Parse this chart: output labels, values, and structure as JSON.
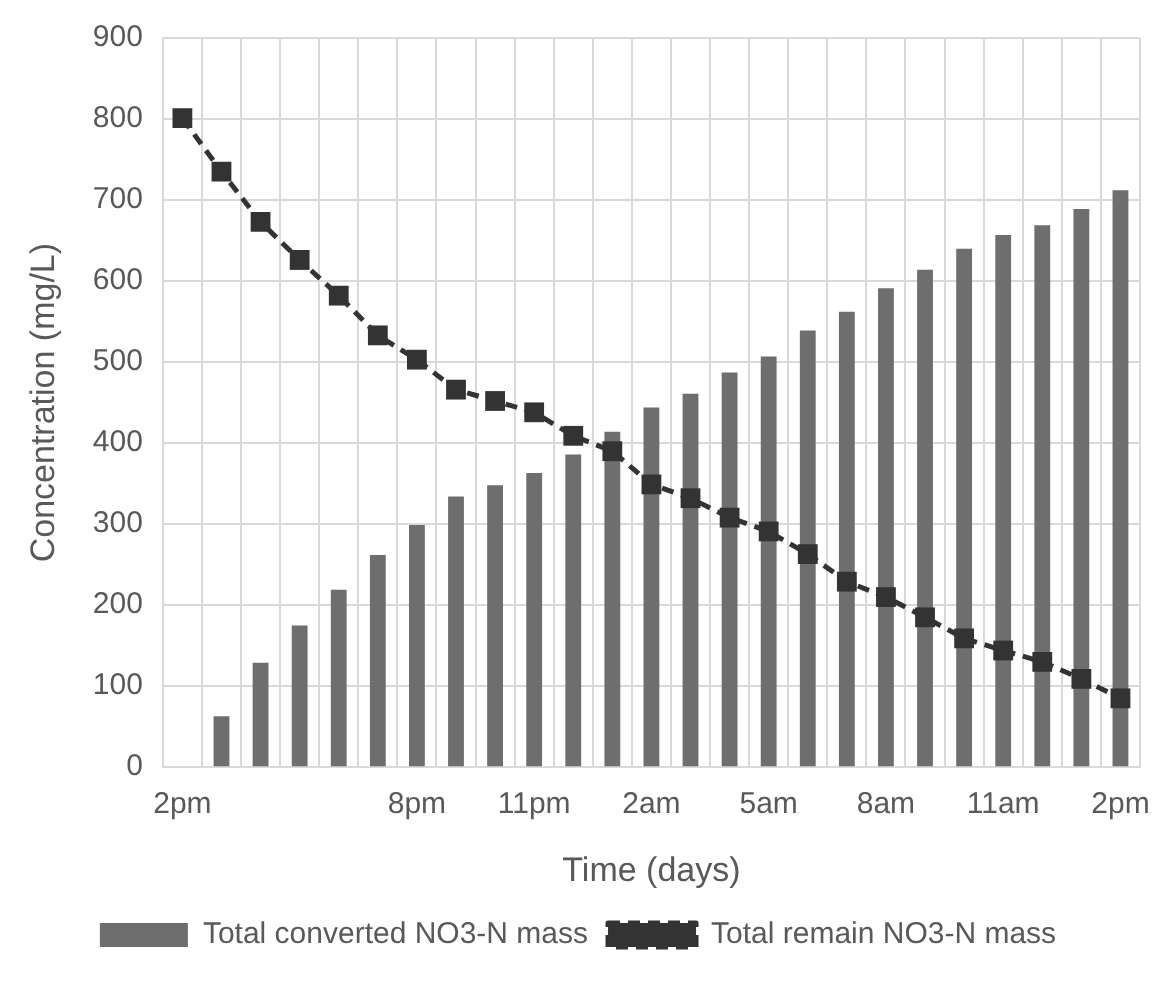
{
  "chart_data": {
    "type": "bar",
    "xlabel": "Time (days)",
    "ylabel": "Concentration (mg/L)",
    "categories": [
      "2pm",
      null,
      null,
      null,
      null,
      null,
      "8pm",
      null,
      null,
      "11pm",
      null,
      null,
      "2am",
      null,
      null,
      "5am",
      null,
      null,
      "8am",
      null,
      null,
      "11am",
      null,
      null,
      "2pm"
    ],
    "series": [
      {
        "name": "Total converted NO3-N mass",
        "color": "#6e6e6e",
        "values": [
          0,
          63,
          129,
          175,
          219,
          262,
          299,
          334,
          348,
          363,
          386,
          414,
          444,
          461,
          487,
          507,
          539,
          562,
          591,
          614,
          640,
          657,
          669,
          689,
          712
        ]
      },
      {
        "name": "Total remain NO3-N mass",
        "type": "line",
        "color": "#333333",
        "marker": "square",
        "line_style": "dashed",
        "values": [
          801,
          735,
          673,
          626,
          582,
          533,
          503,
          466,
          452,
          438,
          409,
          390,
          349,
          332,
          308,
          291,
          263,
          229,
          210,
          185,
          159,
          144,
          130,
          109,
          85
        ]
      }
    ],
    "ylim": [
      0,
      900
    ],
    "yticks": [
      0,
      100,
      200,
      300,
      400,
      500,
      600,
      700,
      800,
      900
    ],
    "grid": true,
    "legend": "bottom"
  }
}
